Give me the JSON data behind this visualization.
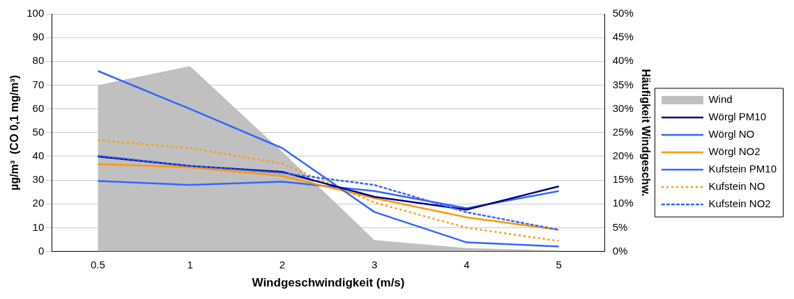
{
  "chart_data": {
    "type": "line",
    "xlabel": "Windgeschwindigkeit (m/s)",
    "ylabel": "µg/m³  (CO 0,1 mg/m³)",
    "y2label": "Häufigkeit Windgeschw.",
    "categories": [
      "0.5",
      "1",
      "2",
      "3",
      "4",
      "5"
    ],
    "series": [
      {
        "name": "Wind",
        "type": "area",
        "axis": "y2",
        "color": "#c0c0c0",
        "values": [
          35,
          39,
          21,
          2.4,
          0.7,
          0.2
        ]
      },
      {
        "name": "Wörgl PM10",
        "color": "#000080",
        "line_style": "solid",
        "values": [
          40,
          36,
          33.5,
          23,
          17.6,
          27.4
        ]
      },
      {
        "name": "Wörgl NO",
        "color": "#3366ff",
        "line_style": "solid",
        "values": [
          76,
          60,
          43.5,
          16.6,
          3.8,
          2.1
        ]
      },
      {
        "name": "Wörgl NO2",
        "color": "#ff9900",
        "line_style": "solid",
        "values": [
          36.8,
          35.4,
          31.8,
          22.4,
          14.4,
          9.1
        ]
      },
      {
        "name": "Kufstein PM10",
        "color": "#3366ff",
        "line_style": "solid",
        "values": [
          29.7,
          28,
          29.4,
          25.4,
          18.2,
          25.4
        ]
      },
      {
        "name": "Kufstein NO",
        "color": "#ff9900",
        "line_style": "dotted",
        "values": [
          46.8,
          43.5,
          37,
          20.6,
          10,
          4.4
        ]
      },
      {
        "name": "Kufstein NO2",
        "color": "#3366ff",
        "line_style": "dashed",
        "values": [
          40.3,
          36,
          33,
          28,
          16.5,
          9.1
        ]
      }
    ],
    "ylim": [
      0,
      100
    ],
    "yticks": [
      0,
      10,
      20,
      30,
      40,
      50,
      60,
      70,
      80,
      90,
      100
    ],
    "y2lim": [
      0,
      50
    ],
    "y2ticks": [
      {
        "value": 0,
        "label": "0%"
      },
      {
        "value": 5,
        "label": "5%"
      },
      {
        "value": 10,
        "label": "10%"
      },
      {
        "value": 15,
        "label": "15%"
      },
      {
        "value": 20,
        "label": "20%"
      },
      {
        "value": 25,
        "label": "25%"
      },
      {
        "value": 30,
        "label": "30%"
      },
      {
        "value": 35,
        "label": "35%"
      },
      {
        "value": 40,
        "label": "40%"
      },
      {
        "value": 45,
        "label": "45%"
      },
      {
        "value": 50,
        "label": "50%"
      }
    ],
    "grid": "y",
    "legend": "right"
  }
}
